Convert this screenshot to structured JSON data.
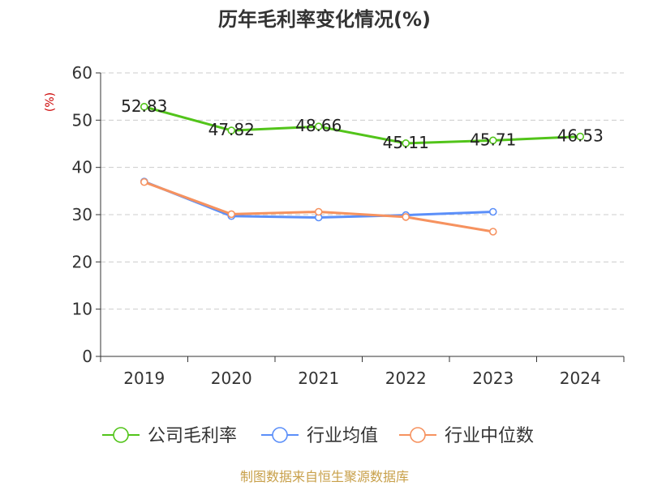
{
  "chart_data": {
    "type": "line",
    "title": "历年毛利率变化情况(%)",
    "ylabel": "(%)",
    "xlabel": "",
    "categories": [
      "2019",
      "2020",
      "2021",
      "2022",
      "2023",
      "2024"
    ],
    "ylim": [
      0,
      60
    ],
    "yticks": [
      0,
      10,
      20,
      30,
      40,
      50,
      60
    ],
    "grid": true,
    "legend_position": "bottom",
    "series": [
      {
        "name": "公司毛利率",
        "color": "#52c41a",
        "values": [
          52.83,
          47.82,
          48.66,
          45.11,
          45.71,
          46.53
        ],
        "labels": [
          "52.83",
          "47.82",
          "48.66",
          "45.11",
          "45.71",
          "46.53"
        ]
      },
      {
        "name": "行业均值",
        "color": "#5b8ff9",
        "values": [
          37.0,
          29.7,
          29.4,
          29.9,
          30.6,
          null
        ]
      },
      {
        "name": "行业中位数",
        "color": "#f6925f",
        "values": [
          36.9,
          30.1,
          30.6,
          29.5,
          26.4,
          null
        ]
      }
    ]
  },
  "source": "制图数据来自恒生聚源数据库",
  "colors": {
    "title": "#333333",
    "axis_label": "#cc0000",
    "source": "#c8a04a",
    "axis": "#333333",
    "grid": "#cccccc"
  }
}
